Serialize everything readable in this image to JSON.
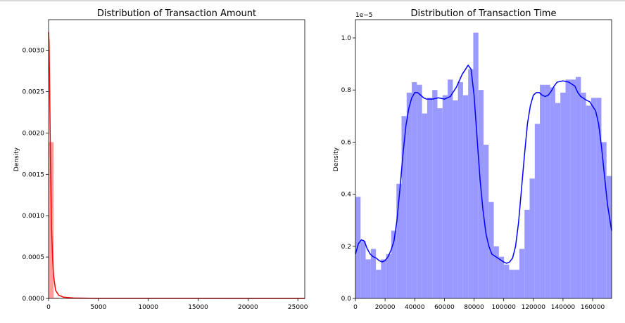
{
  "chart_data": [
    {
      "type": "histogram",
      "title": "Distribution of Transaction Amount",
      "xlabel": "",
      "ylabel": "Density",
      "xlim": [
        0,
        25691
      ],
      "ylim": [
        0,
        0.00337
      ],
      "x_ticks": [
        0,
        5000,
        10000,
        15000,
        20000,
        25000
      ],
      "y_ticks": [
        0.0,
        0.0005,
        0.001,
        0.0015,
        0.002,
        0.0025,
        0.003
      ],
      "y_tick_labels": [
        "0.0000",
        "0.0005",
        "0.0010",
        "0.0015",
        "0.0020",
        "0.0025",
        "0.0030"
      ],
      "colors": {
        "bars": "#ff9c9c",
        "kde": "#ff0000"
      },
      "bins": [
        {
          "x0": 0,
          "x1": 514,
          "density": 0.00189
        },
        {
          "x0": 514,
          "x1": 1028,
          "density": 1e-05
        }
      ],
      "kde": [
        [
          0,
          0.00322
        ],
        [
          50,
          0.0031
        ],
        [
          100,
          0.00265
        ],
        [
          150,
          0.0021
        ],
        [
          200,
          0.0016
        ],
        [
          250,
          0.0012
        ],
        [
          300,
          0.00085
        ],
        [
          400,
          0.0005
        ],
        [
          500,
          0.00028
        ],
        [
          700,
          0.0001
        ],
        [
          1000,
          4e-05
        ],
        [
          1500,
          1.5e-05
        ],
        [
          2500,
          5e-06
        ],
        [
          5000,
          1e-06
        ],
        [
          25691,
          0.0
        ]
      ]
    },
    {
      "type": "histogram",
      "title": "Distribution of Transaction Time",
      "xlabel": "",
      "ylabel": "Density",
      "y_offset_label": "1e−5",
      "xlim": [
        0,
        172792
      ],
      "ylim": [
        0,
        1.07
      ],
      "x_ticks": [
        0,
        20000,
        40000,
        60000,
        80000,
        100000,
        120000,
        140000,
        160000
      ],
      "y_ticks": [
        0.0,
        0.2,
        0.4,
        0.6,
        0.8,
        1.0
      ],
      "y_tick_labels": [
        "0.0",
        "0.2",
        "0.4",
        "0.6",
        "0.8",
        "1.0"
      ],
      "colors": {
        "bars": "#9999ff",
        "kde": "#0000ff"
      },
      "bin_width": 3456,
      "bin_densities": [
        0.39,
        0.22,
        0.15,
        0.19,
        0.11,
        0.15,
        0.17,
        0.26,
        0.44,
        0.7,
        0.79,
        0.83,
        0.82,
        0.71,
        0.77,
        0.8,
        0.73,
        0.78,
        0.84,
        0.76,
        0.83,
        0.78,
        0.88,
        1.02,
        0.8,
        0.59,
        0.37,
        0.2,
        0.16,
        0.13,
        0.11,
        0.11,
        0.19,
        0.34,
        0.46,
        0.67,
        0.82,
        0.82,
        0.81,
        0.75,
        0.79,
        0.84,
        0.84,
        0.85,
        0.79,
        0.74,
        0.77,
        0.77,
        0.6,
        0.47
      ],
      "kde": [
        [
          0,
          0.17
        ],
        [
          2000,
          0.21
        ],
        [
          4000,
          0.225
        ],
        [
          6000,
          0.22
        ],
        [
          8000,
          0.19
        ],
        [
          10000,
          0.17
        ],
        [
          12000,
          0.16
        ],
        [
          14000,
          0.155
        ],
        [
          16000,
          0.145
        ],
        [
          18000,
          0.14
        ],
        [
          20000,
          0.145
        ],
        [
          22000,
          0.16
        ],
        [
          24000,
          0.185
        ],
        [
          26000,
          0.22
        ],
        [
          28000,
          0.3
        ],
        [
          30000,
          0.42
        ],
        [
          32000,
          0.55
        ],
        [
          34000,
          0.66
        ],
        [
          36000,
          0.73
        ],
        [
          38000,
          0.77
        ],
        [
          40000,
          0.79
        ],
        [
          42000,
          0.79
        ],
        [
          44000,
          0.78
        ],
        [
          46000,
          0.77
        ],
        [
          48000,
          0.765
        ],
        [
          52000,
          0.765
        ],
        [
          56000,
          0.77
        ],
        [
          60000,
          0.765
        ],
        [
          64000,
          0.775
        ],
        [
          68000,
          0.81
        ],
        [
          72000,
          0.86
        ],
        [
          76000,
          0.895
        ],
        [
          78000,
          0.88
        ],
        [
          80000,
          0.78
        ],
        [
          82000,
          0.62
        ],
        [
          84000,
          0.46
        ],
        [
          86000,
          0.34
        ],
        [
          88000,
          0.25
        ],
        [
          90000,
          0.2
        ],
        [
          92000,
          0.17
        ],
        [
          96000,
          0.155
        ],
        [
          100000,
          0.14
        ],
        [
          102000,
          0.135
        ],
        [
          104000,
          0.14
        ],
        [
          106000,
          0.155
        ],
        [
          108000,
          0.2
        ],
        [
          110000,
          0.29
        ],
        [
          112000,
          0.42
        ],
        [
          114000,
          0.55
        ],
        [
          116000,
          0.67
        ],
        [
          118000,
          0.74
        ],
        [
          120000,
          0.78
        ],
        [
          122000,
          0.79
        ],
        [
          124000,
          0.79
        ],
        [
          126000,
          0.78
        ],
        [
          128000,
          0.775
        ],
        [
          130000,
          0.78
        ],
        [
          132000,
          0.795
        ],
        [
          134000,
          0.815
        ],
        [
          136000,
          0.83
        ],
        [
          140000,
          0.835
        ],
        [
          144000,
          0.83
        ],
        [
          148000,
          0.815
        ],
        [
          150000,
          0.79
        ],
        [
          152000,
          0.775
        ],
        [
          156000,
          0.76
        ],
        [
          158000,
          0.755
        ],
        [
          162000,
          0.72
        ],
        [
          164000,
          0.67
        ],
        [
          166000,
          0.58
        ],
        [
          168000,
          0.47
        ],
        [
          170000,
          0.36
        ],
        [
          172792,
          0.26
        ]
      ]
    }
  ]
}
